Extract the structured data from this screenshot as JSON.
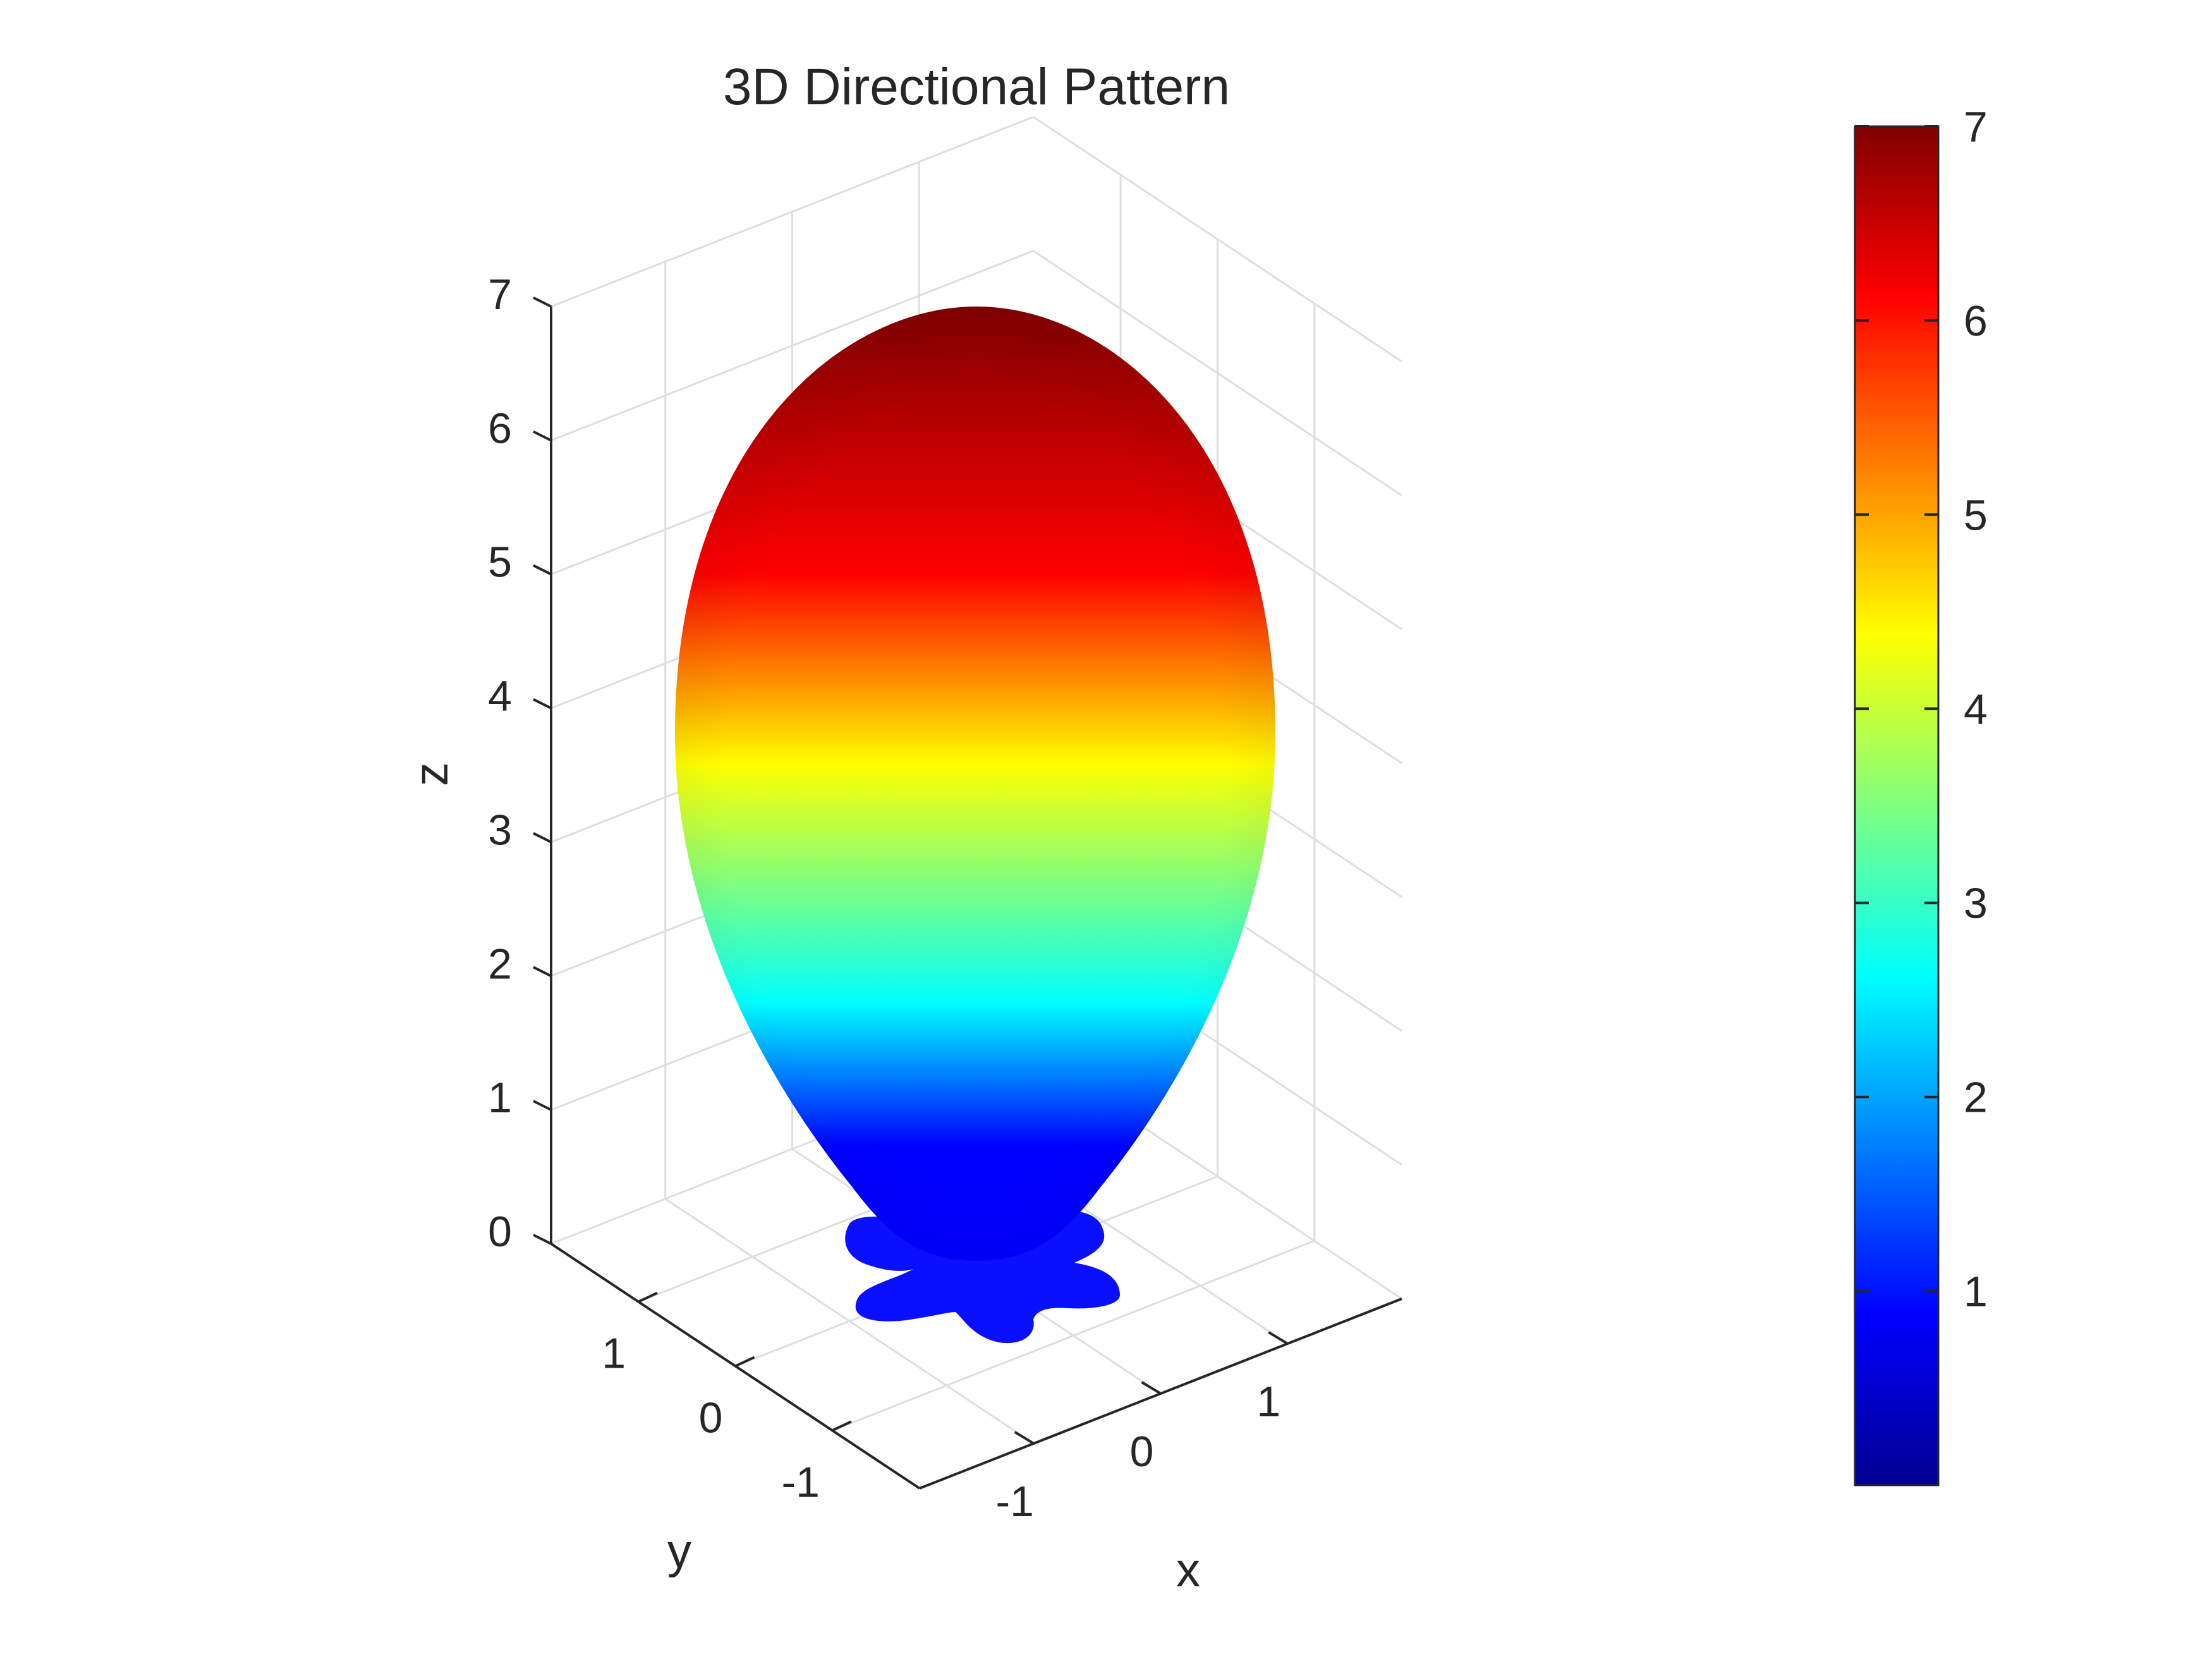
{
  "chart_data": {
    "type": "surface",
    "title": "3D Directional Pattern",
    "xlabel": "x",
    "ylabel": "y",
    "zlabel": "z",
    "xticks": [
      -1,
      0,
      1
    ],
    "yticks": [
      -1,
      0,
      1
    ],
    "zticks": [
      0,
      1,
      2,
      3,
      4,
      5,
      6,
      7
    ],
    "xlim": [
      -1.9,
      1.9
    ],
    "ylim": [
      -1.9,
      1.9
    ],
    "zlim": [
      0,
      7
    ],
    "grid": true,
    "colormap": "jet",
    "colormap_stops": [
      "#00008f",
      "#0000ff",
      "#00ffff",
      "#ffff00",
      "#ff0000",
      "#800000"
    ],
    "colorbar": {
      "location": "right",
      "ticks": [
        1,
        2,
        3,
        4,
        5,
        6,
        7
      ],
      "range": [
        0,
        7
      ]
    },
    "surface": {
      "main_lobe": {
        "z_min": 0.05,
        "z_max": 6.9,
        "max_radius": 1.62,
        "radius_at_height": 3.4
      },
      "side_lobes": {
        "count": 5,
        "height": 0.1,
        "max_radius": 1.45
      }
    }
  }
}
